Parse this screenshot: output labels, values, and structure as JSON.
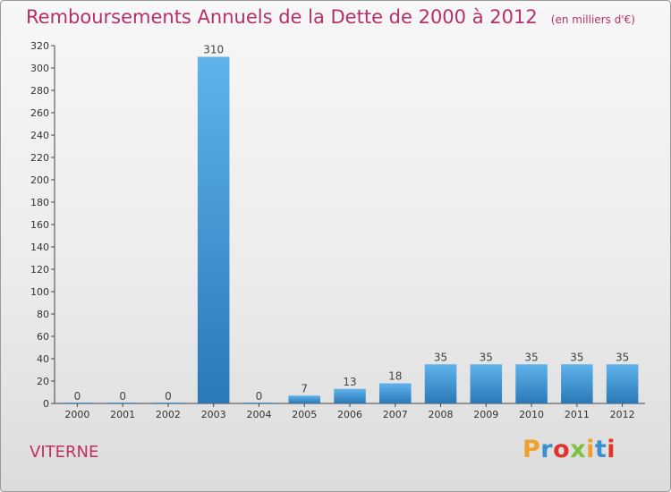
{
  "header": {
    "title": "Remboursements Annuels de la Dette de 2000 à 2012",
    "subtitle": "(en milliers d'€)"
  },
  "footer": {
    "place": "VITERNE",
    "logo": "Proxiti"
  },
  "colors": {
    "title": "#b5306a",
    "bar_top": "#5fb3ea",
    "bar_bottom": "#2a78b8",
    "logo_letters": [
      "#f0a02a",
      "#3a8fd0",
      "#e0342c",
      "#7cc142",
      "#f0a02a",
      "#3a8fd0",
      "#e0342c"
    ]
  },
  "chart_data": {
    "type": "bar",
    "title": "Remboursements Annuels de la Dette de 2000 à 2012",
    "subtitle": "(en milliers d'€)",
    "xlabel": "",
    "ylabel": "",
    "ylim": [
      0,
      320
    ],
    "yticks": [
      0,
      20,
      40,
      60,
      80,
      100,
      120,
      140,
      160,
      180,
      200,
      220,
      240,
      260,
      280,
      300,
      320
    ],
    "grid": false,
    "categories": [
      "2000",
      "2001",
      "2002",
      "2003",
      "2004",
      "2005",
      "2006",
      "2007",
      "2008",
      "2009",
      "2010",
      "2011",
      "2012"
    ],
    "values": [
      0,
      0,
      0,
      310,
      0,
      7,
      13,
      18,
      35,
      35,
      35,
      35,
      35
    ]
  }
}
